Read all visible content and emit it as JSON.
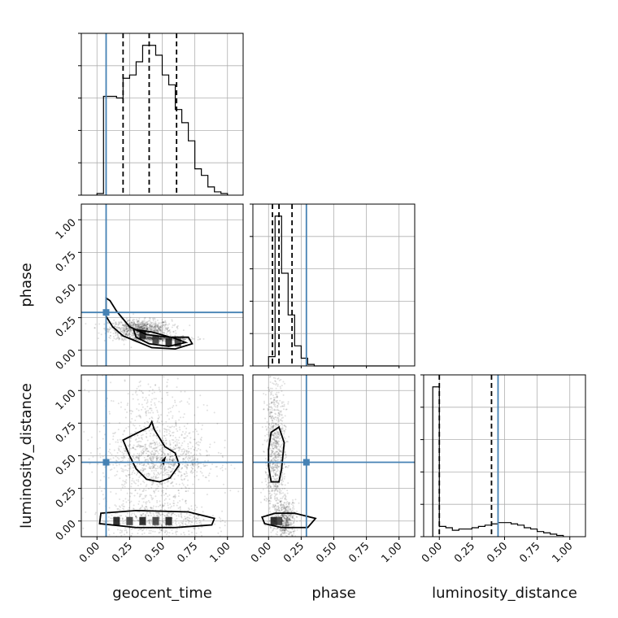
{
  "chart_data": {
    "type": "corner",
    "parameters": [
      "geocent_time",
      "phase",
      "luminosity_distance"
    ],
    "axis_labels": [
      "geocent_time",
      "phase",
      "luminosity_distance"
    ],
    "range": [
      -0.12,
      1.12
    ],
    "ticks": [
      0.0,
      0.25,
      0.5,
      0.75,
      1.0
    ],
    "tick_labels": [
      "0.00",
      "0.25",
      "0.50",
      "0.75",
      "1.00"
    ],
    "grid": true,
    "truths": {
      "geocent_time": 0.07,
      "phase": 0.29,
      "luminosity_distance": 0.45,
      "color": "#4682b4"
    },
    "histograms": [
      {
        "parameter": "geocent_time",
        "bin_edges": [
          0.0,
          0.05,
          0.1,
          0.15,
          0.2,
          0.25,
          0.3,
          0.35,
          0.4,
          0.45,
          0.5,
          0.55,
          0.6,
          0.65,
          0.7,
          0.75,
          0.8,
          0.85,
          0.9,
          0.95,
          1.0
        ],
        "counts": [
          1,
          60,
          60,
          59,
          71,
          73,
          81,
          91,
          91,
          85,
          73,
          67,
          52,
          44,
          33,
          16,
          12,
          5,
          2,
          1
        ],
        "quantiles": [
          0.2,
          0.4,
          0.61
        ]
      },
      {
        "parameter": "phase",
        "bin_edges": [
          0.0,
          0.05,
          0.1,
          0.15,
          0.2,
          0.25,
          0.3,
          0.35,
          0.4,
          0.45,
          0.5,
          0.55,
          0.6,
          0.65,
          0.7,
          0.75,
          0.8,
          0.85,
          0.9,
          0.95,
          1.0
        ],
        "counts": [
          6,
          97,
          60,
          33,
          13,
          5,
          1,
          0,
          0,
          0,
          0,
          0,
          0,
          0,
          0,
          0,
          0,
          0,
          0,
          0
        ],
        "quantiles": [
          0.03,
          0.08,
          0.18
        ]
      },
      {
        "parameter": "luminosity_distance",
        "bin_edges": [
          -0.05,
          0.0,
          0.05,
          0.1,
          0.15,
          0.2,
          0.25,
          0.3,
          0.35,
          0.4,
          0.45,
          0.5,
          0.55,
          0.6,
          0.65,
          0.7,
          0.75,
          0.8,
          0.85,
          0.9,
          0.95
        ],
        "counts": [
          117,
          8,
          7,
          5,
          6,
          6,
          7,
          8,
          9,
          10,
          11,
          11,
          10,
          9,
          7,
          6,
          4,
          3,
          2,
          1
        ],
        "quantiles": [
          0.0,
          0.4
        ]
      }
    ],
    "joint_plots": [
      {
        "x": "geocent_time",
        "y": "phase",
        "scatter_spread": [
          0.12,
          0.035
        ],
        "contours": [
          [
            [
              0.07,
              0.4
            ],
            [
              0.1,
              0.38
            ],
            [
              0.15,
              0.3
            ],
            [
              0.25,
              0.18
            ],
            [
              0.38,
              0.12
            ],
            [
              0.55,
              0.1
            ],
            [
              0.7,
              0.1
            ],
            [
              0.73,
              0.05
            ],
            [
              0.6,
              0.01
            ],
            [
              0.42,
              0.02
            ],
            [
              0.3,
              0.07
            ],
            [
              0.2,
              0.11
            ],
            [
              0.12,
              0.18
            ],
            [
              0.07,
              0.26
            ]
          ],
          [
            [
              0.28,
              0.16
            ],
            [
              0.42,
              0.14
            ],
            [
              0.6,
              0.09
            ],
            [
              0.68,
              0.06
            ],
            [
              0.55,
              0.03
            ],
            [
              0.4,
              0.05
            ],
            [
              0.3,
              0.1
            ]
          ]
        ],
        "dense_bins": [
          [
            0.35,
            0.12
          ],
          [
            0.45,
            0.08
          ],
          [
            0.55,
            0.06
          ],
          [
            0.62,
            0.06
          ]
        ]
      },
      {
        "x": "geocent_time",
        "y": "luminosity_distance",
        "scatter_spread": [
          0.2,
          0.3
        ],
        "contours": [
          [
            [
              0.2,
              0.62
            ],
            [
              0.32,
              0.68
            ],
            [
              0.4,
              0.72
            ],
            [
              0.42,
              0.76
            ],
            [
              0.44,
              0.7
            ],
            [
              0.52,
              0.57
            ],
            [
              0.6,
              0.52
            ],
            [
              0.63,
              0.43
            ],
            [
              0.56,
              0.33
            ],
            [
              0.48,
              0.3
            ],
            [
              0.38,
              0.32
            ],
            [
              0.3,
              0.4
            ],
            [
              0.25,
              0.5
            ]
          ],
          [
            [
              0.03,
              0.06
            ],
            [
              0.3,
              0.08
            ],
            [
              0.7,
              0.07
            ],
            [
              0.9,
              0.02
            ],
            [
              0.88,
              -0.03
            ],
            [
              0.6,
              -0.05
            ],
            [
              0.3,
              -0.05
            ],
            [
              0.02,
              -0.02
            ]
          ],
          [
            [
              0.5,
              0.46
            ],
            [
              0.52,
              0.48
            ],
            [
              0.51,
              0.44
            ]
          ]
        ],
        "dense_bins": [
          [
            0.15,
            0.0
          ],
          [
            0.25,
            0.0
          ],
          [
            0.35,
            0.0
          ],
          [
            0.45,
            0.0
          ],
          [
            0.55,
            0.0
          ]
        ]
      },
      {
        "x": "phase",
        "y": "luminosity_distance",
        "scatter_spread": [
          0.04,
          0.3
        ],
        "contours": [
          [
            [
              0.02,
              0.68
            ],
            [
              0.08,
              0.72
            ],
            [
              0.12,
              0.6
            ],
            [
              0.1,
              0.4
            ],
            [
              0.08,
              0.3
            ],
            [
              0.02,
              0.3
            ],
            [
              0.0,
              0.42
            ],
            [
              0.0,
              0.55
            ]
          ],
          [
            [
              -0.05,
              0.03
            ],
            [
              0.05,
              0.06
            ],
            [
              0.2,
              0.06
            ],
            [
              0.36,
              0.02
            ],
            [
              0.3,
              -0.05
            ],
            [
              0.1,
              -0.05
            ],
            [
              -0.03,
              -0.02
            ]
          ]
        ],
        "dense_bins": [
          [
            0.04,
            0.0
          ],
          [
            0.08,
            0.0
          ]
        ]
      }
    ]
  }
}
